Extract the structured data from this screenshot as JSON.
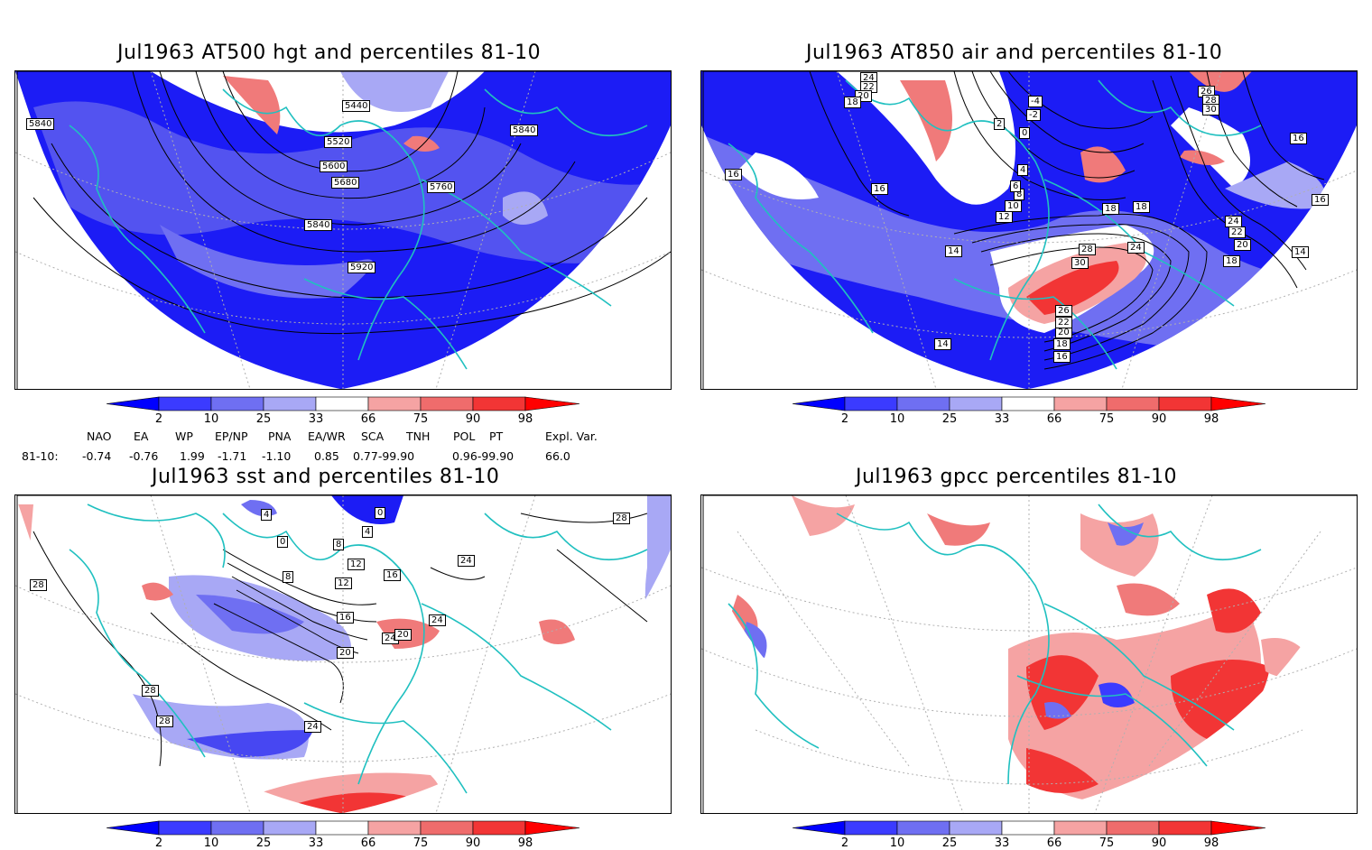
{
  "panels": [
    {
      "id": "p1",
      "title": "Jul1963 AT500 hgt and percentiles 81-10",
      "contour_labels": [
        "5440",
        "5520",
        "5600",
        "5680",
        "5760",
        "5840",
        "5840",
        "5840",
        "5920"
      ]
    },
    {
      "id": "p2",
      "title": "Jul1963 AT850 air and percentiles 81-10",
      "contour_labels": [
        "24",
        "22",
        "20",
        "18",
        "16",
        "16",
        "14",
        "12",
        "10",
        "8",
        "6",
        "4",
        "2",
        "0",
        "-2",
        "-4",
        "14",
        "16",
        "18",
        "18",
        "20",
        "22",
        "24",
        "26",
        "28",
        "30",
        "16",
        "18",
        "20",
        "22",
        "24",
        "26",
        "28",
        "30",
        "14",
        "16",
        "18"
      ]
    },
    {
      "id": "p3",
      "title": "Jul1963 sst and percentiles 81-10",
      "contour_labels": [
        "28",
        "28",
        "28",
        "28",
        "24",
        "24",
        "24",
        "24",
        "20",
        "16",
        "12",
        "8",
        "4",
        "0",
        "0",
        "4",
        "8",
        "12",
        "16",
        "20"
      ]
    },
    {
      "id": "p4",
      "title": "Jul1963 gpcc percentiles 81-10",
      "contour_labels": []
    }
  ],
  "colorbar": {
    "ticks": [
      "2",
      "10",
      "25",
      "33",
      "66",
      "75",
      "90",
      "98"
    ],
    "colors": {
      "extreme_low": "#0000ff",
      "low10": "#3b3bff",
      "low25": "#6f6ff2",
      "low33": "#a8a8f5",
      "neutral": "#ffffff",
      "high66": "#f5a3a3",
      "high75": "#ef6c6c",
      "high90": "#f23535",
      "extreme_high": "#ff0000"
    }
  },
  "indices": {
    "headers": [
      "NAO",
      "EA",
      "WP",
      "EP/NP",
      "PNA",
      "EA/WR",
      "SCA",
      "TNH",
      "POL",
      "PT",
      "Expl. Var."
    ],
    "row_label": "81-10:",
    "values": [
      "-0.74",
      "-0.76",
      "1.99",
      "-1.71",
      "-1.10",
      "0.85",
      "0.77-99.90",
      "0.96-99.90",
      "66.0"
    ]
  },
  "map_colors": {
    "coast": "#20c0c0",
    "grid": "#b0b0b0",
    "contour": "#000000"
  }
}
